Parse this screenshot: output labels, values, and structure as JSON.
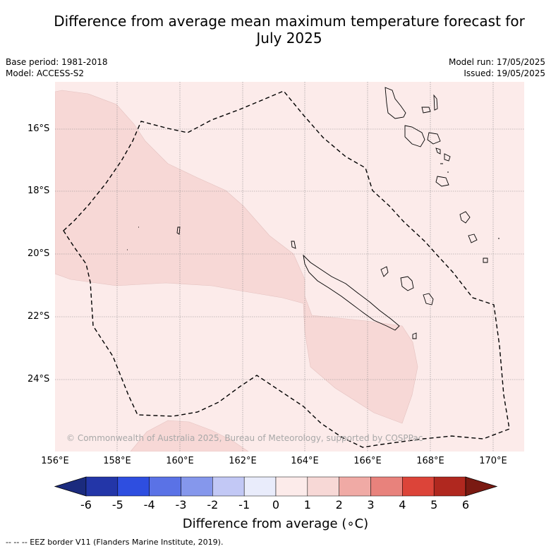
{
  "title": "Difference from average mean maximum temperature forecast for July 2025",
  "title_lines": [
    "Difference from average mean maximum temperature forecast for",
    "July 2025"
  ],
  "meta_left": [
    "Base period: 1981-2018",
    "Model: ACCESS-S2"
  ],
  "meta_right": [
    "Model run: 17/05/2025",
    "Issued: 19/05/2025"
  ],
  "copyright": "© Commonwealth of Australia 2025, Bureau of Meteorology, supported by COSPPac",
  "eez_legend": "--  --  -- EEZ border V11 (Flanders Marine Institute, 2019).",
  "chart_data": {
    "type": "heatmap",
    "lon_range": [
      156,
      171
    ],
    "lat_range": [
      -26.4,
      -14.6
    ],
    "lon_ticks": [
      "156°E",
      "158°E",
      "160°E",
      "162°E",
      "164°E",
      "166°E",
      "168°E",
      "170°E"
    ],
    "lat_ticks": [
      "16°S",
      "18°S",
      "20°S",
      "22°S",
      "24°S"
    ],
    "grid": true,
    "regions": [
      {
        "anomaly_range": [
          0,
          1
        ],
        "color": "#fcebea",
        "extent": "background"
      },
      {
        "anomaly_range": [
          1,
          2
        ],
        "color": "#f7d8d6",
        "extent": "west, central and south-east bands"
      }
    ],
    "colorbar": {
      "title": "Difference from average (∘C)",
      "ticks": [
        "-6",
        "-5",
        "-4",
        "-3",
        "-2",
        "-1",
        "0",
        "1",
        "2",
        "3",
        "4",
        "5",
        "6"
      ],
      "colors": [
        "#2336a8",
        "#2e4ee0",
        "#5a72e6",
        "#8597ec",
        "#c2c8f5",
        "#e9ecfb",
        "#fcebea",
        "#f7d8d6",
        "#f0aaa5",
        "#e8827c",
        "#dc4439",
        "#b0281f"
      ],
      "extend_low": "#1b2b7e",
      "extend_high": "#7a1a12"
    }
  }
}
